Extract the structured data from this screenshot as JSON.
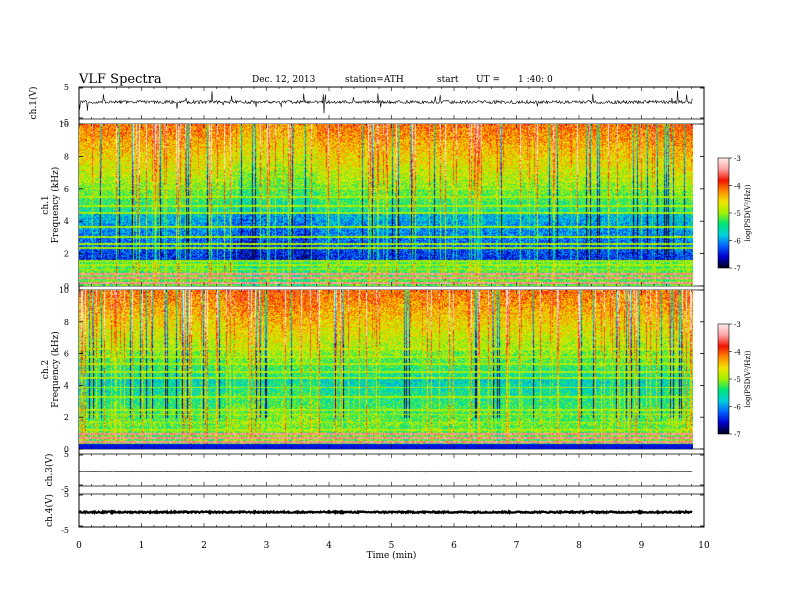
{
  "header": {
    "title": "VLF  Spectra",
    "date": "Dec. 12, 2013",
    "station": "station=ATH",
    "start_label": "start",
    "ut_label": "UT  =",
    "ut_value": "1 :40: 0"
  },
  "chart_data": [
    {
      "type": "line",
      "panel": "ch1-waveform",
      "ylabel": "ch.1(V)",
      "ylim": [
        -5,
        5
      ],
      "yticks": [
        "5",
        "-5"
      ],
      "xlim": [
        0,
        10
      ],
      "baseline": 0.3,
      "noise_amplitude": 0.5,
      "spike_amplitude": 2.2,
      "data_end_min": 9.82
    },
    {
      "type": "heatmap",
      "panel": "ch1-spectrogram",
      "ylabel": "Frequency  (kHz)",
      "ylabel2": "ch.1",
      "ylim": [
        0,
        10
      ],
      "yticks": [
        "0",
        "2",
        "4",
        "6",
        "8",
        "10"
      ],
      "xlim": [
        0,
        10
      ],
      "data_end_min": 9.82,
      "colorbar": {
        "label": "log(PSD(V²/Hz))",
        "range": [
          -7,
          -3
        ],
        "ticks": [
          "-3",
          "-4",
          "-5",
          "-6",
          "-7"
        ]
      },
      "segments_min": [
        2.45,
        3.8,
        9.45
      ],
      "emission_lines_khz": [
        0.2,
        0.55,
        0.8,
        1.05,
        1.3,
        1.6,
        2.35,
        2.6,
        3.05,
        3.7,
        4.55,
        4.95,
        5.5,
        6.05
      ],
      "strong_lines_khz": [
        0.2,
        0.55,
        0.8
      ]
    },
    {
      "type": "heatmap",
      "panel": "ch2-spectrogram",
      "ylabel": "Frequency  (kHz)",
      "ylabel2": "ch.2",
      "ylim": [
        0,
        10
      ],
      "yticks": [
        "0",
        "2",
        "4",
        "6",
        "8",
        "10"
      ],
      "xlim": [
        0,
        10
      ],
      "data_end_min": 9.82,
      "colorbar": {
        "label": "log(PSD(V²/Hz))",
        "range": [
          -7,
          -3
        ],
        "ticks": [
          "-3",
          "-4",
          "-5",
          "-6",
          "-7"
        ]
      },
      "segments_min": [
        2.45,
        3.8,
        9.45
      ],
      "emission_lines_khz": [
        0.2,
        0.5,
        0.75,
        1.0,
        1.25,
        1.7,
        2.2,
        2.5,
        3.3,
        3.9,
        4.5,
        4.9,
        5.4,
        5.8,
        6.3
      ],
      "strong_lines_khz": [
        0.5,
        0.75,
        1.0
      ]
    },
    {
      "type": "line",
      "panel": "ch3-waveform",
      "ylabel": "ch.3(V)",
      "ylim": [
        -5,
        5
      ],
      "yticks": [
        "5",
        "-5"
      ],
      "xlim": [
        0,
        10
      ],
      "baseline": -0.5,
      "noise_amplitude": 0.05,
      "data_end_min": 9.82
    },
    {
      "type": "line",
      "panel": "ch4-waveform",
      "ylabel": "ch.4(V)",
      "ylim": [
        -5,
        5
      ],
      "yticks": [
        "5",
        "-5"
      ],
      "xlim": [
        0,
        10
      ],
      "baseline": -0.5,
      "noise_amplitude": 0.22,
      "data_end_min": 9.82
    }
  ],
  "xaxis": {
    "label": "Time  (min)",
    "ticks": [
      "0",
      "1",
      "2",
      "3",
      "4",
      "5",
      "6",
      "7",
      "8",
      "9",
      "10"
    ]
  },
  "colors": {
    "axis": "#000000",
    "trace": "#000000",
    "colormap": [
      "#00001e",
      "#0000d2",
      "#0064ff",
      "#00d2dc",
      "#00e678",
      "#a0f000",
      "#f0e600",
      "#ff8c00",
      "#f01400",
      "#ffa0a0",
      "#ffeaea"
    ]
  }
}
